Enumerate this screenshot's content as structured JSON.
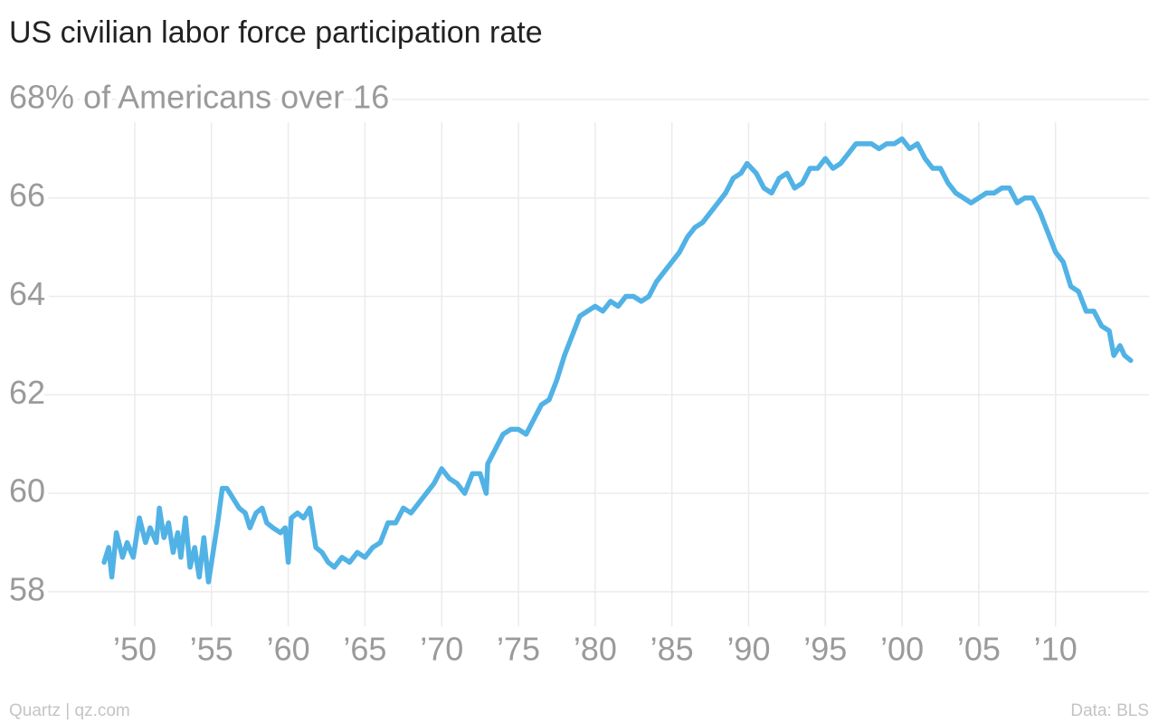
{
  "chart_data": {
    "type": "line",
    "title": "US civilian labor force participation rate",
    "source": "Data: BLS",
    "credit": "Quartz | qz.com",
    "color": "#51b2e5",
    "grid": true,
    "xlim": [
      1947.5,
      2015.5
    ],
    "ylim": [
      57.3,
      68.2
    ],
    "xticks": [
      {
        "value": 1950,
        "label": "’50"
      },
      {
        "value": 1955,
        "label": "’55"
      },
      {
        "value": 1960,
        "label": "’60"
      },
      {
        "value": 1965,
        "label": "’65"
      },
      {
        "value": 1970,
        "label": "’70"
      },
      {
        "value": 1975,
        "label": "’75"
      },
      {
        "value": 1980,
        "label": "’80"
      },
      {
        "value": 1985,
        "label": "’85"
      },
      {
        "value": 1990,
        "label": "’90"
      },
      {
        "value": 1995,
        "label": "’95"
      },
      {
        "value": 2000,
        "label": "’00"
      },
      {
        "value": 2005,
        "label": "’05"
      },
      {
        "value": 2010,
        "label": "’10"
      }
    ],
    "yticks": [
      58,
      60,
      62,
      64,
      66,
      {
        "value": 68,
        "label": "68% of Americans over 16"
      }
    ],
    "x": [
      1948.0,
      1948.3,
      1948.5,
      1948.8,
      1949.2,
      1949.5,
      1949.9,
      1950.3,
      1950.7,
      1951.0,
      1951.4,
      1951.6,
      1951.9,
      1952.2,
      1952.5,
      1952.8,
      1953.0,
      1953.3,
      1953.6,
      1953.9,
      1954.2,
      1954.5,
      1954.8,
      1955.1,
      1955.4,
      1955.7,
      1956.0,
      1956.4,
      1956.8,
      1957.2,
      1957.5,
      1957.9,
      1958.3,
      1958.6,
      1959.0,
      1959.5,
      1959.8,
      1960.0,
      1960.2,
      1960.6,
      1961.0,
      1961.4,
      1961.8,
      1962.2,
      1962.6,
      1963.0,
      1963.5,
      1964.0,
      1964.5,
      1965.0,
      1965.5,
      1966.0,
      1966.5,
      1967.0,
      1967.5,
      1968.0,
      1968.5,
      1969.0,
      1969.5,
      1970.0,
      1970.5,
      1971.0,
      1971.5,
      1972.0,
      1972.5,
      1972.9,
      1973.0,
      1973.5,
      1974.0,
      1974.5,
      1975.0,
      1975.5,
      1976.0,
      1976.5,
      1977.0,
      1977.5,
      1978.0,
      1978.5,
      1979.0,
      1979.5,
      1980.0,
      1980.5,
      1981.0,
      1981.5,
      1982.0,
      1982.5,
      1983.0,
      1983.5,
      1984.0,
      1984.5,
      1985.0,
      1985.5,
      1986.0,
      1986.5,
      1987.0,
      1987.5,
      1988.0,
      1988.5,
      1989.0,
      1989.5,
      1989.9,
      1990.5,
      1991.0,
      1991.5,
      1992.0,
      1992.5,
      1993.0,
      1993.5,
      1994.0,
      1994.5,
      1995.0,
      1995.5,
      1996.0,
      1996.5,
      1997.0,
      1997.5,
      1998.0,
      1998.5,
      1999.0,
      1999.5,
      2000.0,
      2000.5,
      2001.0,
      2001.5,
      2002.0,
      2002.5,
      2003.0,
      2003.5,
      2004.0,
      2004.5,
      2005.0,
      2005.5,
      2006.0,
      2006.5,
      2007.0,
      2007.5,
      2008.0,
      2008.5,
      2009.0,
      2009.5,
      2010.0,
      2010.5,
      2011.0,
      2011.5,
      2012.0,
      2012.5,
      2013.0,
      2013.5,
      2013.8,
      2014.2,
      2014.5,
      2014.9
    ],
    "values": [
      58.6,
      58.9,
      58.3,
      59.2,
      58.7,
      59.0,
      58.7,
      59.5,
      59.0,
      59.3,
      59.0,
      59.7,
      59.1,
      59.4,
      58.8,
      59.2,
      58.7,
      59.5,
      58.5,
      58.9,
      58.3,
      59.1,
      58.2,
      58.8,
      59.4,
      60.1,
      60.1,
      59.9,
      59.7,
      59.6,
      59.3,
      59.6,
      59.7,
      59.4,
      59.3,
      59.2,
      59.3,
      58.6,
      59.5,
      59.6,
      59.5,
      59.7,
      58.9,
      58.8,
      58.6,
      58.5,
      58.7,
      58.6,
      58.8,
      58.7,
      58.9,
      59.0,
      59.4,
      59.4,
      59.7,
      59.6,
      59.8,
      60.0,
      60.2,
      60.5,
      60.3,
      60.2,
      60.0,
      60.4,
      60.4,
      60.0,
      60.6,
      60.9,
      61.2,
      61.3,
      61.3,
      61.2,
      61.5,
      61.8,
      61.9,
      62.3,
      62.8,
      63.2,
      63.6,
      63.7,
      63.8,
      63.7,
      63.9,
      63.8,
      64.0,
      64.0,
      63.9,
      64.0,
      64.3,
      64.5,
      64.7,
      64.9,
      65.2,
      65.4,
      65.5,
      65.7,
      65.9,
      66.1,
      66.4,
      66.5,
      66.7,
      66.5,
      66.2,
      66.1,
      66.4,
      66.5,
      66.2,
      66.3,
      66.6,
      66.6,
      66.8,
      66.6,
      66.7,
      66.9,
      67.1,
      67.1,
      67.1,
      67.0,
      67.1,
      67.1,
      67.2,
      67.0,
      67.1,
      66.8,
      66.6,
      66.6,
      66.3,
      66.1,
      66.0,
      65.9,
      66.0,
      66.1,
      66.1,
      66.2,
      66.2,
      65.9,
      66.0,
      66.0,
      65.7,
      65.3,
      64.9,
      64.7,
      64.2,
      64.1,
      63.7,
      63.7,
      63.4,
      63.3,
      62.8,
      63.0,
      62.8,
      62.7
    ]
  }
}
